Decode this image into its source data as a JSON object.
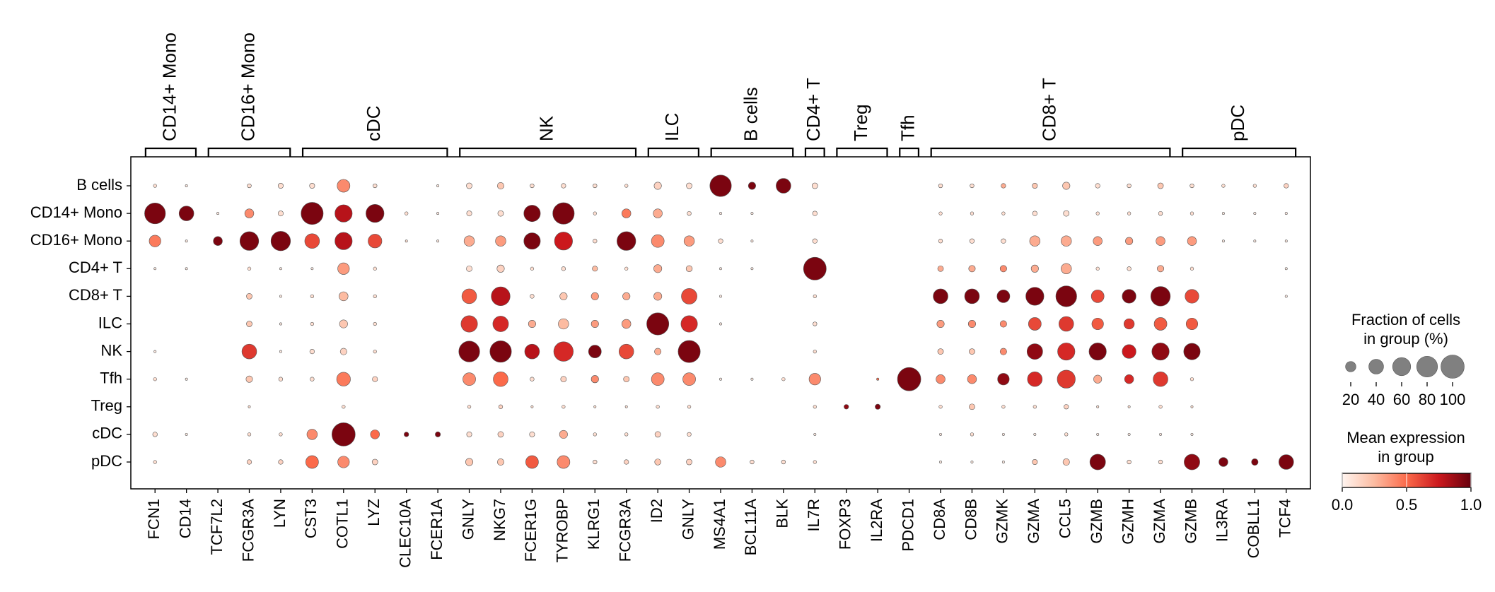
{
  "chart_data": {
    "type": "dotplot",
    "rows": [
      "B cells",
      "CD14+ Mono",
      "CD16+ Mono",
      "CD4+ T",
      "CD8+ T",
      "ILC",
      "NK",
      "Tfh",
      "Treg",
      "cDC",
      "pDC"
    ],
    "gene_groups": [
      {
        "label": "CD14+ Mono",
        "genes": [
          "FCN1",
          "CD14"
        ]
      },
      {
        "label": "CD16+ Mono",
        "genes": [
          "TCF7L2",
          "FCGR3A",
          "LYN"
        ]
      },
      {
        "label": "cDC",
        "genes": [
          "CST3",
          "COTL1",
          "LYZ",
          "CLEC10A",
          "FCER1A"
        ]
      },
      {
        "label": "NK",
        "genes": [
          "GNLY",
          "NKG7",
          "FCER1G",
          "TYROBP",
          "KLRG1",
          "FCGR3A"
        ]
      },
      {
        "label": "ILC",
        "genes": [
          "ID2",
          "GNLY"
        ]
      },
      {
        "label": "B cells",
        "genes": [
          "MS4A1",
          "BCL11A",
          "BLK"
        ]
      },
      {
        "label": "CD4+ T",
        "genes": [
          "IL7R"
        ]
      },
      {
        "label": "Treg",
        "genes": [
          "FOXP3",
          "IL2RA"
        ]
      },
      {
        "label": "Tfh",
        "genes": [
          "PDCD1"
        ]
      },
      {
        "label": "CD8+ T",
        "genes": [
          "CD8A",
          "CD8B",
          "GZMK",
          "GZMA",
          "CCL5",
          "GZMB",
          "GZMH",
          "GZMA"
        ]
      },
      {
        "label": "pDC",
        "genes": [
          "GZMB",
          "IL3RA",
          "COBLL1",
          "TCF4"
        ]
      }
    ],
    "fraction": [
      [
        2,
        1,
        0,
        3,
        5,
        5,
        30,
        3,
        0,
        1,
        6,
        8,
        3,
        4,
        3,
        2,
        10,
        6,
        85,
        10,
        40,
        6,
        0,
        0,
        0,
        3,
        3,
        4,
        5,
        10,
        4,
        3,
        6,
        3,
        2,
        2,
        4
      ],
      [
        80,
        40,
        1,
        15,
        5,
        90,
        55,
        60,
        2,
        1,
        5,
        6,
        50,
        85,
        2,
        15,
        15,
        3,
        1,
        1,
        0,
        4,
        0,
        0,
        0,
        2,
        2,
        2,
        4,
        6,
        2,
        2,
        3,
        2,
        1,
        1,
        1
      ],
      [
        25,
        1,
        15,
        65,
        70,
        40,
        55,
        35,
        1,
        1,
        20,
        20,
        50,
        60,
        3,
        65,
        30,
        20,
        4,
        1,
        0,
        4,
        0,
        0,
        0,
        3,
        4,
        4,
        20,
        20,
        15,
        10,
        15,
        15,
        1,
        1,
        1
      ],
      [
        1,
        1,
        0,
        2,
        1,
        1,
        25,
        2,
        0,
        0,
        6,
        10,
        2,
        3,
        5,
        2,
        12,
        7,
        1,
        1,
        0,
        95,
        0,
        0,
        0,
        6,
        8,
        8,
        10,
        20,
        2,
        3,
        8,
        2,
        0,
        0,
        1
      ],
      [
        0,
        0,
        0,
        6,
        1,
        2,
        15,
        2,
        0,
        0,
        40,
        65,
        3,
        10,
        10,
        10,
        12,
        45,
        1,
        0,
        0,
        2,
        0,
        0,
        0,
        40,
        40,
        30,
        60,
        80,
        30,
        35,
        70,
        35,
        0,
        0,
        1
      ],
      [
        0,
        0,
        0,
        6,
        1,
        2,
        12,
        2,
        0,
        0,
        50,
        45,
        10,
        20,
        10,
        15,
        90,
        50,
        1,
        0,
        0,
        3,
        0,
        0,
        0,
        10,
        10,
        8,
        30,
        40,
        25,
        20,
        30,
        25,
        0,
        0,
        0
      ],
      [
        1,
        0,
        0,
        40,
        1,
        4,
        8,
        2,
        0,
        0,
        80,
        85,
        40,
        70,
        30,
        40,
        8,
        90,
        0,
        0,
        0,
        2,
        0,
        0,
        0,
        6,
        6,
        8,
        45,
        55,
        55,
        35,
        55,
        50,
        0,
        0,
        0
      ],
      [
        2,
        1,
        0,
        8,
        3,
        3,
        35,
        5,
        0,
        0,
        30,
        40,
        3,
        6,
        10,
        6,
        30,
        30,
        1,
        1,
        2,
        25,
        0,
        1,
        100,
        15,
        15,
        25,
        40,
        60,
        12,
        15,
        40,
        2,
        0,
        0,
        0
      ],
      [
        0,
        0,
        0,
        1,
        0,
        0,
        2,
        0,
        0,
        0,
        2,
        3,
        1,
        2,
        1,
        1,
        2,
        2,
        0,
        0,
        0,
        2,
        4,
        5,
        0,
        2,
        6,
        2,
        2,
        4,
        1,
        1,
        2,
        1,
        0,
        0,
        0
      ],
      [
        4,
        1,
        0,
        2,
        2,
        20,
        100,
        15,
        4,
        5,
        5,
        6,
        5,
        12,
        2,
        2,
        6,
        3,
        0,
        0,
        0,
        1,
        0,
        0,
        0,
        1,
        2,
        1,
        1,
        2,
        1,
        1,
        1,
        1,
        0,
        0,
        0
      ],
      [
        2,
        0,
        0,
        4,
        4,
        30,
        25,
        6,
        0,
        0,
        10,
        8,
        30,
        30,
        3,
        4,
        7,
        6,
        20,
        3,
        3,
        2,
        0,
        0,
        0,
        1,
        1,
        1,
        5,
        8,
        45,
        3,
        3,
        45,
        15,
        8,
        40
      ]
    ],
    "expression": [
      [
        0.1,
        0.05,
        0,
        0.1,
        0.1,
        0.1,
        0.4,
        0.1,
        0,
        0.05,
        0.1,
        0.2,
        0.1,
        0.1,
        0.1,
        0.1,
        0.15,
        0.1,
        0.95,
        0.95,
        0.95,
        0.1,
        0,
        0,
        0,
        0.1,
        0.1,
        0.3,
        0.2,
        0.2,
        0.1,
        0.1,
        0.2,
        0.1,
        0.1,
        0.1,
        0.15
      ],
      [
        0.95,
        0.95,
        0.05,
        0.4,
        0.1,
        0.95,
        0.8,
        0.95,
        0.1,
        0.05,
        0.1,
        0.1,
        0.95,
        0.95,
        0.1,
        0.45,
        0.3,
        0.1,
        0.05,
        0.05,
        0,
        0.1,
        0,
        0,
        0,
        0.1,
        0.1,
        0.1,
        0.1,
        0.1,
        0.1,
        0.1,
        0.1,
        0.1,
        0.05,
        0.05,
        0.05
      ],
      [
        0.45,
        0.05,
        0.95,
        0.95,
        0.95,
        0.6,
        0.8,
        0.6,
        0.1,
        0.05,
        0.3,
        0.35,
        0.95,
        0.75,
        0.1,
        0.95,
        0.4,
        0.35,
        0.1,
        0.05,
        0,
        0.1,
        0,
        0,
        0,
        0.1,
        0.1,
        0.1,
        0.3,
        0.3,
        0.35,
        0.35,
        0.35,
        0.35,
        0.05,
        0.05,
        0.05
      ],
      [
        0.05,
        0.05,
        0,
        0.1,
        0.05,
        0.05,
        0.35,
        0.1,
        0,
        0,
        0.1,
        0.15,
        0.1,
        0.1,
        0.25,
        0.1,
        0.3,
        0.2,
        0.05,
        0.05,
        0,
        0.95,
        0,
        0,
        0,
        0.3,
        0.3,
        0.4,
        0.3,
        0.3,
        0.1,
        0.1,
        0.3,
        0.1,
        0,
        0,
        0.05
      ],
      [
        0,
        0,
        0,
        0.2,
        0.05,
        0.1,
        0.25,
        0.1,
        0,
        0,
        0.55,
        0.8,
        0.1,
        0.2,
        0.35,
        0.3,
        0.3,
        0.6,
        0.05,
        0,
        0,
        0.1,
        0,
        0,
        0,
        0.95,
        0.95,
        0.95,
        0.95,
        0.95,
        0.6,
        0.95,
        0.95,
        0.6,
        0,
        0,
        0.05
      ],
      [
        0,
        0,
        0,
        0.2,
        0.05,
        0.1,
        0.2,
        0.1,
        0,
        0,
        0.65,
        0.7,
        0.3,
        0.25,
        0.35,
        0.35,
        0.95,
        0.7,
        0.05,
        0,
        0,
        0.1,
        0,
        0,
        0,
        0.35,
        0.4,
        0.4,
        0.6,
        0.65,
        0.55,
        0.65,
        0.55,
        0.55,
        0,
        0,
        0
      ],
      [
        0.05,
        0,
        0,
        0.65,
        0.05,
        0.1,
        0.15,
        0.1,
        0,
        0,
        0.95,
        0.95,
        0.8,
        0.7,
        0.95,
        0.6,
        0.3,
        0.95,
        0,
        0,
        0,
        0.1,
        0,
        0,
        0,
        0.2,
        0.2,
        0.4,
        0.9,
        0.7,
        0.95,
        0.75,
        0.9,
        0.95,
        0,
        0,
        0
      ],
      [
        0.1,
        0.05,
        0,
        0.2,
        0.1,
        0.1,
        0.45,
        0.15,
        0,
        0,
        0.4,
        0.5,
        0.1,
        0.15,
        0.4,
        0.2,
        0.4,
        0.4,
        0.05,
        0.05,
        0.1,
        0.4,
        0,
        0.5,
        0.95,
        0.4,
        0.4,
        0.9,
        0.7,
        0.65,
        0.3,
        0.7,
        0.65,
        0.1,
        0,
        0,
        0
      ],
      [
        0,
        0,
        0,
        0.1,
        0,
        0,
        0.1,
        0,
        0,
        0,
        0.1,
        0.15,
        0.1,
        0.1,
        0.1,
        0.1,
        0.1,
        0.1,
        0,
        0,
        0,
        0.1,
        0.9,
        0.95,
        0,
        0.1,
        0.2,
        0.1,
        0.1,
        0.15,
        0.1,
        0.1,
        0.1,
        0.1,
        0,
        0,
        0
      ],
      [
        0.1,
        0.05,
        0,
        0.1,
        0.1,
        0.4,
        0.95,
        0.5,
        0.95,
        0.95,
        0.1,
        0.15,
        0.1,
        0.3,
        0.1,
        0.1,
        0.15,
        0.1,
        0,
        0,
        0,
        0.05,
        0,
        0,
        0,
        0.05,
        0.1,
        0.05,
        0.05,
        0.1,
        0.05,
        0.05,
        0.05,
        0.05,
        0,
        0,
        0
      ],
      [
        0.1,
        0,
        0,
        0.15,
        0.15,
        0.5,
        0.4,
        0.15,
        0,
        0,
        0.2,
        0.2,
        0.55,
        0.4,
        0.1,
        0.15,
        0.2,
        0.15,
        0.4,
        0.1,
        0.1,
        0.1,
        0,
        0,
        0,
        0.05,
        0.05,
        0.05,
        0.2,
        0.2,
        0.95,
        0.1,
        0.1,
        0.9,
        0.95,
        0.95,
        0.95
      ]
    ],
    "size_legend_title": [
      "Fraction of cells",
      "in group (%)"
    ],
    "size_ticks": [
      20,
      40,
      60,
      80,
      100
    ],
    "color_legend_title": [
      "Mean expression",
      "in group"
    ],
    "clim": [
      0,
      1
    ],
    "color_ticks": [
      {
        "value": 0,
        "label": "0.0"
      },
      0.5,
      {
        "value": 1,
        "label": "1.0"
      }
    ],
    "colormap": [
      "#fff5f0",
      "#fcbba1",
      "#fb6a4a",
      "#cb181d",
      "#67000d"
    ],
    "size_legend_color": "#808080"
  }
}
